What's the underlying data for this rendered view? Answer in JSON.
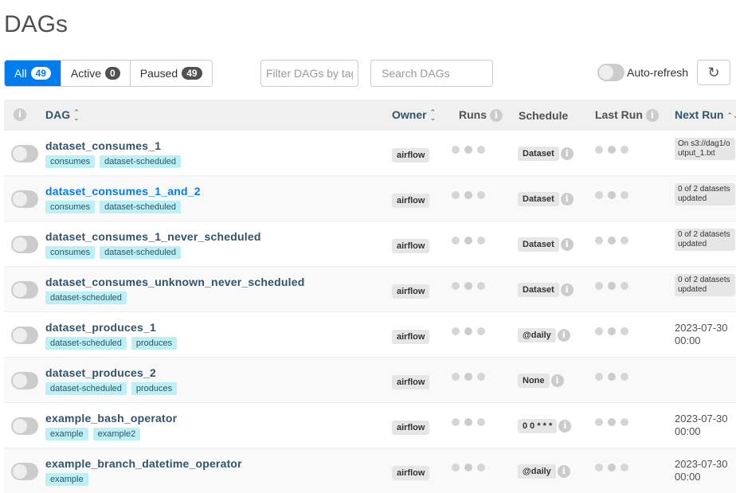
{
  "page_title": "DAGs",
  "filters": [
    {
      "label": "All",
      "count": "49",
      "active": true
    },
    {
      "label": "Active",
      "count": "0",
      "active": false
    },
    {
      "label": "Paused",
      "count": "49",
      "active": false
    }
  ],
  "tag_filter_placeholder": "Filter DAGs by tag",
  "search_placeholder": "Search DAGs",
  "auto_refresh_label": "Auto-refresh",
  "refresh_icon": "↻",
  "columns": {
    "dag": "DAG",
    "owner": "Owner",
    "runs": "Runs",
    "schedule": "Schedule",
    "last_run": "Last Run",
    "next_run": "Next Run"
  },
  "info_glyph": "i",
  "sort_glyph": "⌃⌄",
  "rows": [
    {
      "name": "dataset_consumes_1",
      "tags": [
        "consumes",
        "dataset-scheduled"
      ],
      "owner": "airflow",
      "schedule": "Dataset",
      "next_run": "On s3://dag1/output_1.txt",
      "next_run_badge": true
    },
    {
      "name": "dataset_consumes_1_and_2",
      "tags": [
        "consumes",
        "dataset-scheduled"
      ],
      "owner": "airflow",
      "schedule": "Dataset",
      "next_run": "0 of 2 datasets updated",
      "next_run_badge": true,
      "link": true
    },
    {
      "name": "dataset_consumes_1_never_scheduled",
      "tags": [
        "consumes",
        "dataset-scheduled"
      ],
      "owner": "airflow",
      "schedule": "Dataset",
      "next_run": "0 of 2 datasets updated",
      "next_run_badge": true
    },
    {
      "name": "dataset_consumes_unknown_never_scheduled",
      "tags": [
        "dataset-scheduled"
      ],
      "owner": "airflow",
      "schedule": "Dataset",
      "next_run": "0 of 2 datasets updated",
      "next_run_badge": true
    },
    {
      "name": "dataset_produces_1",
      "tags": [
        "dataset-scheduled",
        "produces"
      ],
      "owner": "airflow",
      "schedule": "@daily",
      "next_run": "2023-07-30 00:00",
      "next_run_badge": false
    },
    {
      "name": "dataset_produces_2",
      "tags": [
        "dataset-scheduled",
        "produces"
      ],
      "owner": "airflow",
      "schedule": "None",
      "next_run": "",
      "next_run_badge": false
    },
    {
      "name": "example_bash_operator",
      "tags": [
        "example",
        "example2"
      ],
      "owner": "airflow",
      "schedule": "0 0 * * *",
      "next_run": "2023-07-30 00:00",
      "next_run_badge": false
    },
    {
      "name": "example_branch_datetime_operator",
      "tags": [
        "example"
      ],
      "owner": "airflow",
      "schedule": "@daily",
      "next_run": "2023-07-30 00:00",
      "next_run_badge": false
    }
  ]
}
